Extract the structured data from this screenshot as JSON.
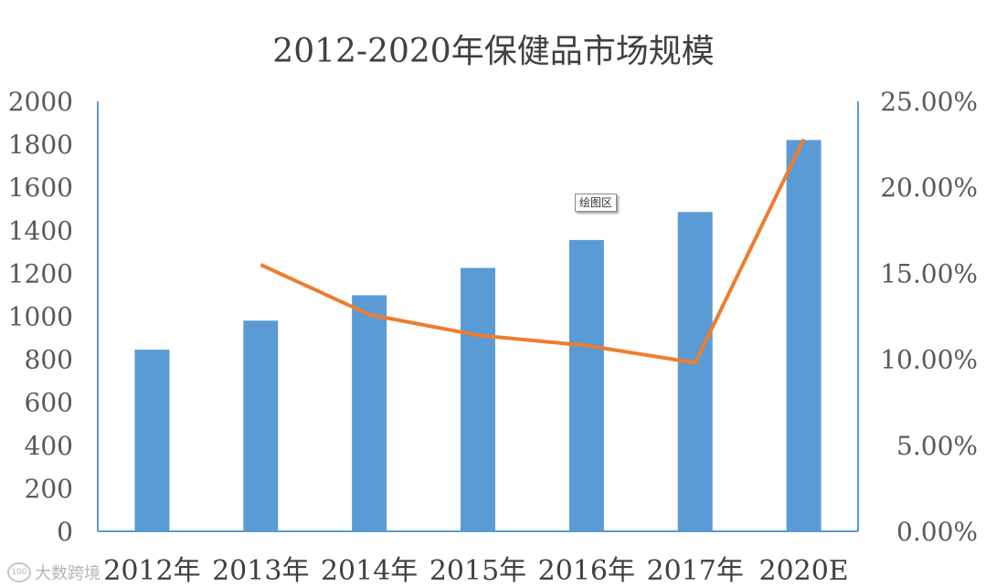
{
  "chart_data": {
    "type": "bar",
    "title": "2012-2020年保健品市场规模",
    "categories": [
      "2012年",
      "2013年",
      "2014年",
      "2015年",
      "2016年",
      "2017年",
      "2020E"
    ],
    "series": [
      {
        "type": "bar",
        "axis": "left",
        "values": [
          845,
          980,
          1098,
          1225,
          1355,
          1485,
          1820
        ],
        "color": "#5B9BD5"
      },
      {
        "type": "line",
        "axis": "right",
        "values": [
          null,
          0.155,
          0.126,
          0.114,
          0.108,
          0.098,
          0.228
        ],
        "color": "#ED7D31"
      }
    ],
    "y_left": {
      "ylim": [
        0,
        2000
      ],
      "ticks": [
        "0",
        "200",
        "400",
        "600",
        "800",
        "1000",
        "1200",
        "1400",
        "1600",
        "1800",
        "2000"
      ]
    },
    "y_right": {
      "ylim": [
        0,
        0.25
      ],
      "ticks": [
        "0.00%",
        "5.00%",
        "10.00%",
        "15.00%",
        "20.00%",
        "25.00%"
      ]
    },
    "grid": false,
    "axis_color": "#5B9BD5"
  },
  "tooltip": "绘图区",
  "watermark": {
    "logo": "100",
    "text": "大数跨境"
  }
}
